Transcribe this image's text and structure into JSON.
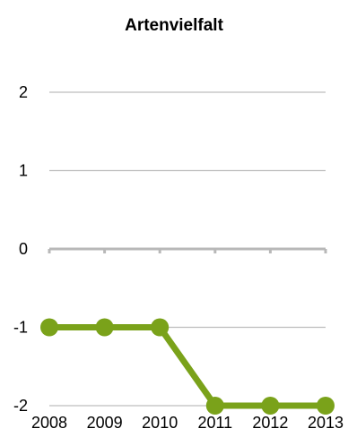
{
  "chart_data": {
    "type": "line",
    "title": "Artenvielfalt",
    "xlabel": "",
    "ylabel": "",
    "x": [
      "2008",
      "2009",
      "2010",
      "2011",
      "2012",
      "2013"
    ],
    "series": [
      {
        "values": [
          -1,
          -1,
          -1,
          -2,
          -2,
          -2
        ]
      }
    ],
    "ylim": [
      -2,
      2
    ],
    "yticks": [
      2,
      1,
      0,
      -1,
      -2
    ],
    "grid": true,
    "legend": "none",
    "colors": {
      "series": "#7aa21a",
      "grid": "#bdbdbd",
      "zero_axis": "#b8b8b8"
    }
  }
}
